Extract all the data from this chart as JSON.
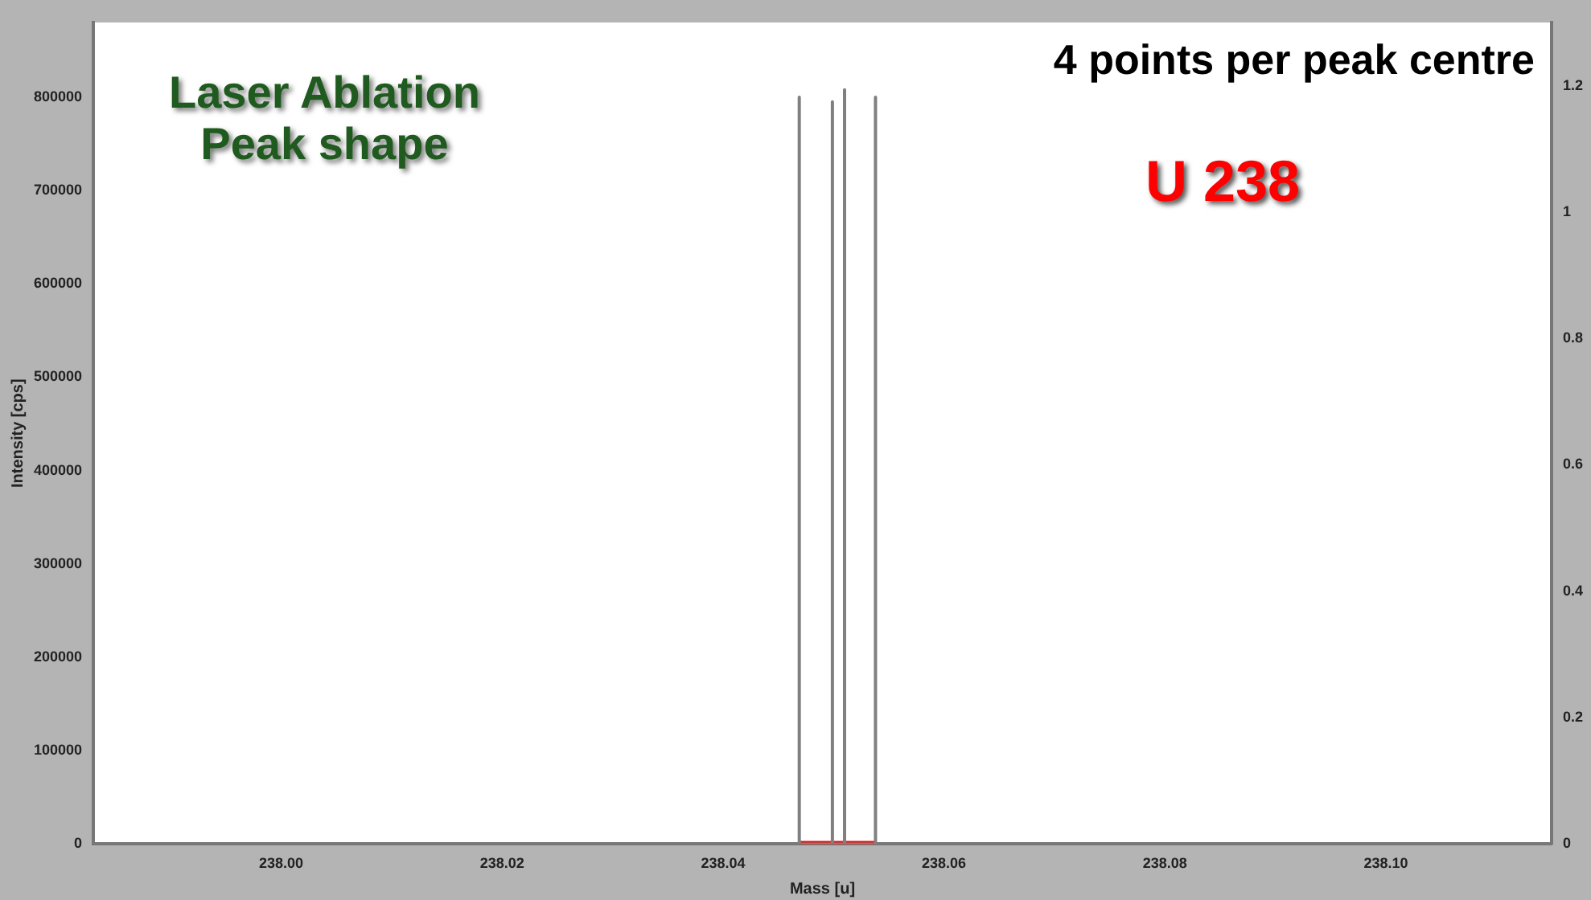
{
  "chart_data": {
    "type": "line",
    "title": "4 points per peak centre",
    "xlabel": "Mass [u]",
    "ylabel": "Intensity [cps]",
    "annotations": [
      "Laser Ablation\nPeak shape",
      "U 238"
    ],
    "series": [
      {
        "color": "#808080",
        "x": [
          238.0469,
          238.0469,
          238.0469,
          238.0499,
          238.0499,
          238.0499,
          238.051,
          238.051,
          238.051,
          238.0538,
          238.0538,
          238.0538
        ],
        "values": [
          0,
          800000,
          0,
          0,
          795000,
          0,
          0,
          808000,
          0,
          0,
          800000,
          0
        ]
      },
      {
        "color": "#ff0000",
        "x": [
          238.0469,
          238.0538
        ],
        "values": [
          0,
          0
        ]
      }
    ],
    "xlim": [
      237.983,
      238.115
    ],
    "xticks": [
      {
        "value": 238.0,
        "label": "238.00"
      },
      {
        "value": 238.02,
        "label": "238.02"
      },
      {
        "value": 238.04,
        "label": "238.04"
      },
      {
        "value": 238.06,
        "label": "238.06"
      },
      {
        "value": 238.08,
        "label": "238.08"
      },
      {
        "value": 238.1,
        "label": "238.10"
      }
    ],
    "ylim": [
      0,
      880000
    ],
    "yticks": [
      0,
      100000,
      200000,
      300000,
      400000,
      500000,
      600000,
      700000,
      800000
    ],
    "y2lim": [
      0,
      1.3
    ],
    "y2ticks": [
      0,
      0.2,
      0.4,
      0.6,
      0.8,
      1,
      1.2
    ],
    "grid": false,
    "legend": false,
    "marker": "none",
    "line_style": "solid"
  }
}
